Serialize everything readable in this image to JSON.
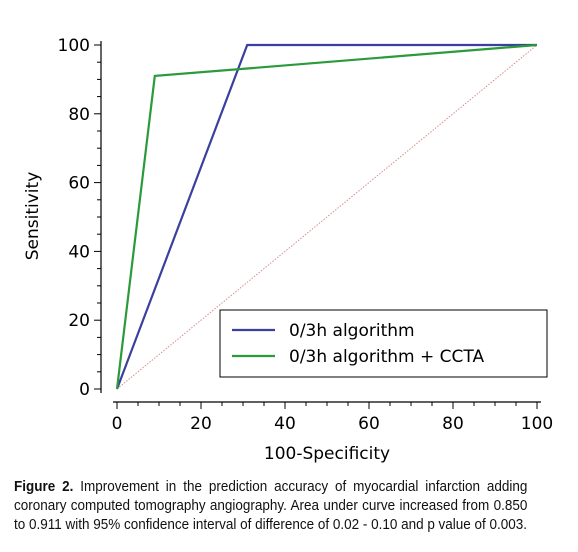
{
  "chart_data": {
    "type": "line",
    "xlabel": "100-Specificity",
    "ylabel": "Sensitivity",
    "xlim": [
      0,
      100
    ],
    "ylim": [
      0,
      100
    ],
    "x_ticks": [
      0,
      20,
      40,
      60,
      80,
      100
    ],
    "y_ticks": [
      0,
      20,
      40,
      60,
      80,
      100
    ],
    "grid": false,
    "legend_position": "bottom-right",
    "series": [
      {
        "name": "0/3h algorithm",
        "color": "#3b3f9e",
        "x": [
          0,
          31,
          100
        ],
        "y": [
          0,
          100,
          100
        ]
      },
      {
        "name": "0/3h algorithm + CCTA",
        "color": "#2a9a3a",
        "x": [
          0,
          9,
          100
        ],
        "y": [
          0,
          91,
          100
        ]
      }
    ],
    "reference_line": {
      "color": "#d98c8c",
      "x": [
        0,
        100
      ],
      "y": [
        0,
        100
      ]
    }
  },
  "caption": {
    "label": "Figure 2.",
    "text": "Improvement in the prediction accuracy of myocardial infarction adding coronary computed tomography angiography. Area under curve increased from 0.850 to 0.911 with 95% confidence interval of difference of 0.02 - 0.10 and p value of 0.003."
  }
}
